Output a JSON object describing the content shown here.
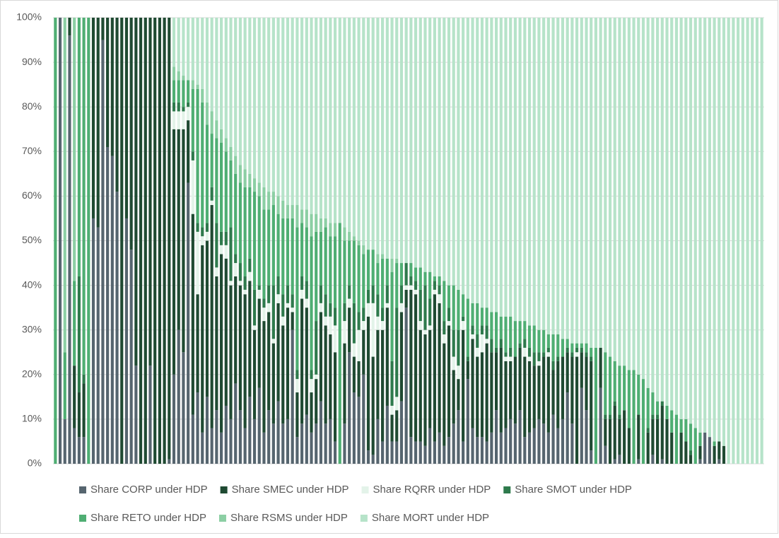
{
  "chart_data": {
    "type": "stacked_bar_100",
    "ylim": [
      0,
      100
    ],
    "yticks": [
      {
        "value": 0,
        "label": "0%"
      },
      {
        "value": 10,
        "label": "10%"
      },
      {
        "value": 20,
        "label": "20%"
      },
      {
        "value": 30,
        "label": "30%"
      },
      {
        "value": 40,
        "label": "40%"
      },
      {
        "value": 50,
        "label": "50%"
      },
      {
        "value": 60,
        "label": "60%"
      },
      {
        "value": 70,
        "label": "70%"
      },
      {
        "value": 80,
        "label": "80%"
      },
      {
        "value": 90,
        "label": "90%"
      },
      {
        "value": 100,
        "label": "100%"
      }
    ],
    "grid": true,
    "legend": "bottom",
    "series": [
      {
        "name": "Share CORP under HDP",
        "color": "#56656f",
        "values": [
          0,
          100,
          10,
          96,
          8,
          6,
          6,
          0,
          55,
          53,
          95,
          71,
          69,
          61,
          0,
          55,
          48,
          22,
          0,
          0,
          22,
          0,
          0,
          0,
          1,
          20,
          30,
          25,
          63,
          11,
          16,
          7,
          15,
          8,
          12,
          7,
          13,
          10,
          18,
          12,
          8,
          15,
          10,
          17,
          7,
          12,
          9,
          14,
          9,
          10,
          30,
          6,
          9,
          11,
          7,
          9,
          14,
          9,
          10,
          5,
          0,
          9,
          25,
          16,
          15,
          20,
          3,
          2,
          10,
          5,
          13,
          5,
          5,
          14,
          35,
          6,
          5,
          5,
          4,
          8,
          5,
          7,
          4,
          6,
          9,
          12,
          5,
          19,
          8,
          6,
          6,
          5,
          7,
          12,
          7,
          8,
          10,
          9,
          12,
          6,
          7,
          8,
          10,
          9,
          7,
          11,
          8,
          10,
          16,
          9,
          0,
          17,
          12,
          3,
          0,
          17,
          4,
          0,
          1,
          2,
          0,
          0,
          0,
          1,
          0,
          0,
          2,
          0,
          1,
          0,
          0,
          0,
          0,
          0,
          0,
          0,
          1,
          7,
          6,
          0,
          1,
          0,
          0,
          0,
          0,
          0,
          0,
          0,
          0,
          0
        ]
      },
      {
        "name": "Share SMEC under HDP",
        "color": "#1f4a32",
        "values": [
          0,
          0,
          0,
          4,
          14,
          10,
          12,
          0,
          45,
          47,
          5,
          29,
          31,
          39,
          100,
          45,
          52,
          78,
          100,
          100,
          78,
          100,
          100,
          100,
          99,
          55,
          45,
          50,
          14,
          45,
          22,
          42,
          35,
          50,
          30,
          40,
          33,
          30,
          24,
          28,
          30,
          26,
          20,
          20,
          25,
          22,
          18,
          22,
          22,
          25,
          4,
          10,
          28,
          24,
          9,
          10,
          20,
          22,
          19,
          20,
          0,
          18,
          10,
          8,
          8,
          10,
          30,
          22,
          20,
          25,
          22,
          6,
          7,
          20,
          4,
          33,
          33,
          25,
          25,
          22,
          33,
          29,
          23,
          25,
          12,
          7,
          25,
          4,
          20,
          18,
          19,
          22,
          18,
          13,
          19,
          15,
          13,
          15,
          14,
          18,
          16,
          14,
          12,
          15,
          17,
          10,
          15,
          14,
          9,
          15,
          24,
          8,
          12,
          20,
          0,
          9,
          6,
          10,
          12,
          8,
          12,
          8,
          0,
          10,
          0,
          7,
          8,
          10,
          12,
          10,
          7,
          0,
          7,
          5,
          2,
          0,
          3,
          0,
          0,
          4,
          4,
          4,
          0,
          0,
          0,
          0,
          0,
          0,
          0,
          0
        ]
      },
      {
        "name": "Share RQRR under HDP",
        "color": "#e3f3e9",
        "values": [
          0,
          0,
          0,
          0,
          0,
          0,
          0,
          0,
          0,
          0,
          0,
          0,
          0,
          0,
          0,
          0,
          0,
          0,
          0,
          0,
          0,
          0,
          0,
          0,
          0,
          4,
          4,
          4,
          3,
          12,
          14,
          2,
          2,
          1,
          2,
          2,
          3,
          1,
          3,
          1,
          1,
          2,
          1,
          2,
          3,
          2,
          1,
          2,
          2,
          1,
          1,
          3,
          2,
          2,
          3,
          1,
          2,
          2,
          4,
          6,
          0,
          5,
          2,
          3,
          7,
          2,
          3,
          12,
          3,
          2,
          1,
          2,
          3,
          2,
          1,
          1,
          1,
          2,
          1,
          1,
          1,
          2,
          2,
          1,
          3,
          3,
          2,
          0,
          1,
          2,
          4,
          1,
          0,
          0,
          0,
          1,
          1,
          0,
          0,
          2,
          1,
          0,
          1,
          0,
          1,
          0,
          0,
          0,
          0,
          0,
          1,
          0,
          0,
          0,
          0,
          0,
          0,
          0,
          0,
          0,
          0,
          0,
          0,
          0,
          0,
          0,
          0,
          0,
          0,
          0,
          0,
          0,
          0,
          0,
          0,
          0,
          0,
          0,
          0,
          0,
          0,
          0,
          0,
          0,
          0,
          0,
          0,
          0,
          0,
          0
        ]
      },
      {
        "name": "Share SMOT under HDP",
        "color": "#2e7a4c",
        "values": [
          0,
          0,
          0,
          0,
          0,
          26,
          2,
          0,
          0,
          0,
          0,
          0,
          0,
          0,
          0,
          0,
          0,
          0,
          0,
          0,
          0,
          0,
          0,
          0,
          0,
          2,
          2,
          1,
          1,
          2,
          2,
          2,
          2,
          3,
          10,
          3,
          3,
          12,
          2,
          4,
          3,
          3,
          8,
          1,
          2,
          4,
          12,
          4,
          5,
          4,
          3,
          2,
          3,
          4,
          2,
          12,
          4,
          5,
          3,
          4,
          0,
          4,
          3,
          9,
          4,
          3,
          3,
          4,
          5,
          3,
          4,
          10,
          20,
          4,
          5,
          2,
          2,
          7,
          10,
          6,
          2,
          2,
          3,
          3,
          6,
          8,
          1,
          1,
          2,
          3,
          2,
          3,
          3,
          1,
          2,
          1,
          2,
          0,
          1,
          2,
          2,
          3,
          2,
          1,
          1,
          2,
          1,
          0,
          1,
          1,
          1,
          1,
          1,
          1,
          0,
          0,
          1,
          1,
          1,
          1,
          0,
          0,
          0,
          0,
          0,
          1,
          1,
          1,
          1,
          0,
          0,
          0,
          0,
          0,
          1,
          0,
          0,
          0,
          0,
          0,
          0,
          0,
          0,
          0,
          0,
          0,
          0,
          0,
          0,
          0
        ]
      },
      {
        "name": "Share RETO under HDP",
        "color": "#4fae73",
        "values": [
          100,
          0,
          15,
          0,
          19,
          58,
          80,
          100,
          0,
          0,
          0,
          0,
          0,
          0,
          0,
          0,
          0,
          0,
          0,
          0,
          0,
          0,
          0,
          0,
          0,
          5,
          5,
          6,
          5,
          14,
          30,
          28,
          22,
          12,
          19,
          20,
          18,
          15,
          18,
          18,
          20,
          16,
          22,
          20,
          20,
          17,
          18,
          14,
          17,
          15,
          17,
          32,
          12,
          12,
          30,
          20,
          12,
          15,
          15,
          16,
          54,
          14,
          10,
          14,
          15,
          12,
          9,
          8,
          7,
          11,
          6,
          20,
          10,
          5,
          0,
          3,
          3,
          5,
          3,
          6,
          1,
          2,
          9,
          5,
          10,
          9,
          5,
          13,
          5,
          7,
          4,
          4,
          6,
          8,
          5,
          8,
          7,
          8,
          5,
          4,
          5,
          6,
          5,
          5,
          3,
          6,
          5,
          4,
          2,
          2,
          1,
          1,
          2,
          2,
          26,
          0,
          14,
          13,
          9,
          11,
          10,
          13,
          21,
          9,
          19,
          9,
          5,
          3,
          0,
          3,
          5,
          11,
          3,
          5,
          6,
          8,
          3,
          0,
          0,
          1,
          0,
          0,
          0,
          0,
          0,
          0,
          0,
          0,
          0,
          0
        ]
      },
      {
        "name": "Share RSMS under HDP",
        "color": "#8ccfa4",
        "values": [
          0,
          0,
          75,
          0,
          59,
          0,
          0,
          0,
          0,
          0,
          0,
          0,
          0,
          0,
          0,
          0,
          0,
          0,
          0,
          0,
          0,
          0,
          0,
          0,
          0,
          3,
          2,
          1,
          0,
          2,
          1,
          3,
          5,
          5,
          4,
          3,
          3,
          3,
          4,
          4,
          4,
          3,
          3,
          3,
          5,
          4,
          3,
          4,
          4,
          3,
          3,
          5,
          3,
          4,
          5,
          4,
          3,
          2,
          3,
          3,
          0,
          3,
          2,
          1,
          1,
          2,
          0,
          0,
          2,
          1,
          0,
          3,
          1,
          0,
          0,
          0,
          0,
          0,
          0,
          0,
          0,
          0,
          0,
          0,
          0,
          0,
          0,
          0,
          0,
          0,
          0,
          0,
          0,
          0,
          0,
          0,
          0,
          0,
          0,
          0,
          0,
          0,
          0,
          0,
          0,
          0,
          0,
          0,
          0,
          0,
          0,
          0,
          0,
          0,
          0,
          0,
          0,
          0,
          0,
          0,
          0,
          0,
          0,
          0,
          0,
          0,
          0,
          0,
          0,
          0,
          0,
          0,
          0,
          0,
          0,
          0,
          0,
          0,
          0,
          0,
          0,
          0,
          0,
          0,
          0,
          0,
          0,
          0,
          0,
          0
        ]
      },
      {
        "name": "Share MORT under HDP",
        "color": "#b6e3c9",
        "values": [
          0,
          0,
          0,
          0,
          0,
          0,
          0,
          0,
          0,
          0,
          0,
          0,
          0,
          0,
          0,
          0,
          0,
          0,
          0,
          0,
          0,
          0,
          0,
          0,
          0,
          11,
          12,
          13,
          14,
          14,
          15,
          16,
          19,
          21,
          23,
          25,
          27,
          29,
          31,
          33,
          34,
          35,
          36,
          37,
          38,
          39,
          39,
          40,
          41,
          42,
          42,
          42,
          43,
          43,
          44,
          44,
          45,
          45,
          46,
          46,
          46,
          47,
          48,
          49,
          50,
          51,
          52,
          52,
          53,
          53,
          54,
          54,
          54,
          55,
          55,
          55,
          56,
          56,
          57,
          57,
          58,
          58,
          59,
          60,
          60,
          61,
          62,
          63,
          64,
          64,
          65,
          65,
          66,
          66,
          67,
          67,
          67,
          68,
          68,
          68,
          69,
          69,
          70,
          70,
          71,
          71,
          71,
          72,
          72,
          73,
          73,
          73,
          73,
          74,
          74,
          74,
          75,
          76,
          77,
          78,
          78,
          79,
          79,
          80,
          81,
          83,
          84,
          86,
          86,
          87,
          88,
          89,
          90,
          90,
          91,
          92,
          93,
          93,
          94,
          95,
          95,
          96,
          100,
          100,
          100,
          100,
          100,
          100,
          100,
          100
        ]
      }
    ]
  }
}
